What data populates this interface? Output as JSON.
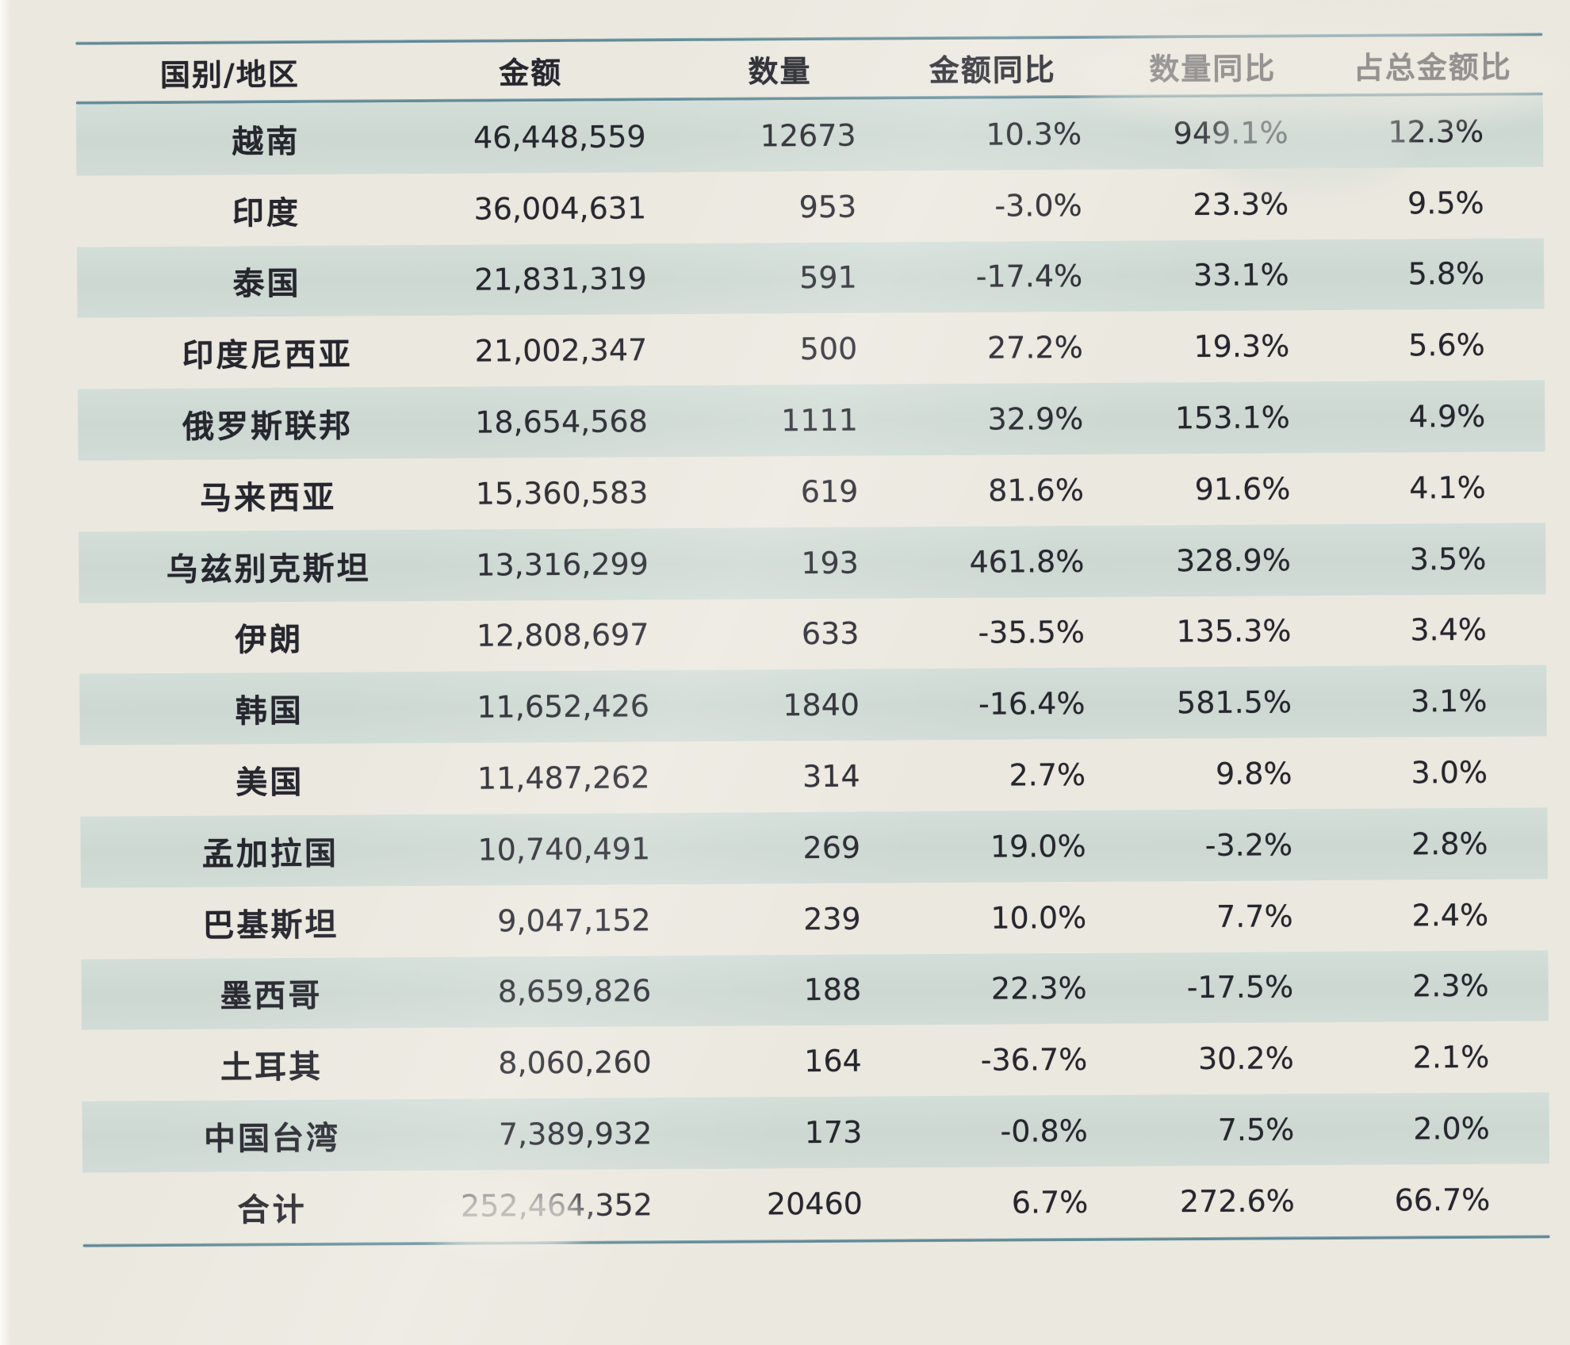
{
  "document": {
    "kind": "photographed spreadsheet table of export statistics by country/region"
  },
  "table": {
    "columns": [
      "国别/地区",
      "金额",
      "数量",
      "金额同比",
      "数量同比",
      "占总金额比"
    ],
    "rows": [
      [
        "越南",
        "46,448,559",
        "12673",
        "10.3%",
        "949.1%",
        "12.3%"
      ],
      [
        "印度",
        "36,004,631",
        "953",
        "-3.0%",
        "23.3%",
        "9.5%"
      ],
      [
        "泰国",
        "21,831,319",
        "591",
        "-17.4%",
        "33.1%",
        "5.8%"
      ],
      [
        "印度尼西亚",
        "21,002,347",
        "500",
        "27.2%",
        "19.3%",
        "5.6%"
      ],
      [
        "俄罗斯联邦",
        "18,654,568",
        "1111",
        "32.9%",
        "153.1%",
        "4.9%"
      ],
      [
        "马来西亚",
        "15,360,583",
        "619",
        "81.6%",
        "91.6%",
        "4.1%"
      ],
      [
        "乌兹别克斯坦",
        "13,316,299",
        "193",
        "461.8%",
        "328.9%",
        "3.5%"
      ],
      [
        "伊朗",
        "12,808,697",
        "633",
        "-35.5%",
        "135.3%",
        "3.4%"
      ],
      [
        "韩国",
        "11,652,426",
        "1840",
        "-16.4%",
        "581.5%",
        "3.1%"
      ],
      [
        "美国",
        "11,487,262",
        "314",
        "2.7%",
        "9.8%",
        "3.0%"
      ],
      [
        "孟加拉国",
        "10,740,491",
        "269",
        "19.0%",
        "-3.2%",
        "2.8%"
      ],
      [
        "巴基斯坦",
        "9,047,152",
        "239",
        "10.0%",
        "7.7%",
        "2.4%"
      ],
      [
        "墨西哥",
        "8,659,826",
        "188",
        "22.3%",
        "-17.5%",
        "2.3%"
      ],
      [
        "土耳其",
        "8,060,260",
        "164",
        "-36.7%",
        "30.2%",
        "2.1%"
      ],
      [
        "中国台湾",
        "7,389,932",
        "173",
        "-0.8%",
        "7.5%",
        "2.0%"
      ]
    ],
    "total_row": [
      "合计",
      "252,464,352",
      "20460",
      "6.7%",
      "272.6%",
      "66.7%"
    ]
  },
  "colors": {
    "paper": "#ebe8df",
    "band": "#cfdad4",
    "rule_line": "#567f8c",
    "text": "#26262e"
  }
}
